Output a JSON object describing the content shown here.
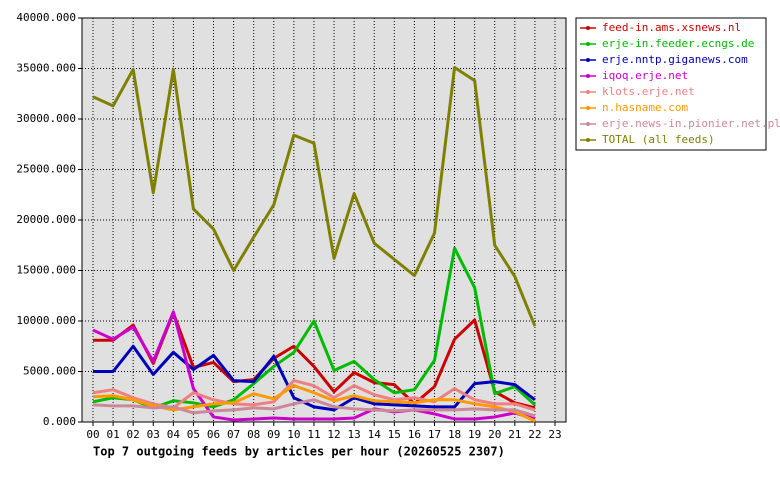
{
  "chart_data": {
    "type": "line",
    "title": "Top 7 outgoing feeds by articles per hour (20260525 2307)",
    "categories": [
      "00",
      "01",
      "02",
      "03",
      "04",
      "05",
      "06",
      "07",
      "08",
      "09",
      "10",
      "11",
      "12",
      "13",
      "14",
      "15",
      "16",
      "17",
      "18",
      "19",
      "20",
      "21",
      "22",
      "23"
    ],
    "ylim": [
      0,
      40000
    ],
    "yticks": [
      {
        "value": 0,
        "label": "0.000"
      },
      {
        "value": 5000,
        "label": "5000.000"
      },
      {
        "value": 10000,
        "label": "10000.000"
      },
      {
        "value": 15000,
        "label": "15000.000"
      },
      {
        "value": 20000,
        "label": "20000.000"
      },
      {
        "value": 25000,
        "label": "25000.000"
      },
      {
        "value": 30000,
        "label": "30000.000"
      },
      {
        "value": 35000,
        "label": "35000.000"
      },
      {
        "value": 40000,
        "label": "40000.000"
      }
    ],
    "grid": true,
    "legend": "right",
    "series": [
      {
        "name": "feed-in.ams.xsnews.nl",
        "color": "#cc0000",
        "values": [
          8100,
          8100,
          9600,
          5800,
          10800,
          5400,
          5900,
          4000,
          4200,
          6300,
          7500,
          5500,
          3000,
          4900,
          3900,
          3700,
          1800,
          3500,
          8200,
          10100,
          3000,
          1900,
          1400,
          null
        ]
      },
      {
        "name": "erje-in.feeder.ecngs.de",
        "color": "#00bb00",
        "values": [
          2000,
          2400,
          2200,
          1400,
          2100,
          1900,
          1500,
          2200,
          3800,
          5500,
          6900,
          10000,
          5100,
          6000,
          4200,
          2900,
          3200,
          6100,
          17200,
          13300,
          2800,
          3500,
          1700,
          null
        ]
      },
      {
        "name": "erje.nntp.giganews.com",
        "color": "#0000bb",
        "values": [
          5000,
          5000,
          7500,
          4700,
          6900,
          5200,
          6600,
          4100,
          4000,
          6500,
          2400,
          1500,
          1200,
          2400,
          1800,
          1700,
          1600,
          1500,
          1500,
          3800,
          4000,
          3700,
          2200,
          null
        ]
      },
      {
        "name": "iqoq.erje.net",
        "color": "#cc00cc",
        "values": [
          9100,
          8200,
          9400,
          6000,
          10900,
          3300,
          500,
          200,
          300,
          400,
          300,
          300,
          300,
          400,
          1300,
          1000,
          1200,
          800,
          300,
          300,
          500,
          900,
          300,
          null
        ]
      },
      {
        "name": "klots.erje.net",
        "color": "#f08080",
        "values": [
          2900,
          3200,
          2400,
          1800,
          1400,
          2900,
          2200,
          1800,
          1700,
          2000,
          4100,
          3600,
          2400,
          3600,
          2700,
          2200,
          2400,
          2000,
          3300,
          2200,
          1800,
          1800,
          1200,
          null
        ]
      },
      {
        "name": "n.hasname.com",
        "color": "#ff9900",
        "values": [
          2500,
          2600,
          2200,
          1600,
          1200,
          1500,
          1800,
          1900,
          2800,
          2300,
          3600,
          2900,
          2100,
          2600,
          2100,
          2000,
          1900,
          2200,
          2200,
          1800,
          1500,
          1000,
          100,
          null
        ]
      },
      {
        "name": "erje.news-in.pionier.net.pl",
        "color": "#cc8899",
        "values": [
          1700,
          1600,
          1600,
          1400,
          1500,
          900,
          1100,
          1200,
          1400,
          1300,
          1800,
          2200,
          1500,
          1300,
          1200,
          1100,
          1200,
          1200,
          1200,
          1300,
          1200,
          1200,
          600,
          null
        ]
      },
      {
        "name": "TOTAL (all feeds)",
        "color": "#808000",
        "values": [
          32200,
          31300,
          34900,
          22700,
          34900,
          21100,
          19100,
          15000,
          18300,
          21500,
          28400,
          27600,
          16200,
          22600,
          17700,
          16100,
          14500,
          18700,
          35100,
          33800,
          17500,
          14400,
          9500,
          null
        ]
      }
    ]
  }
}
